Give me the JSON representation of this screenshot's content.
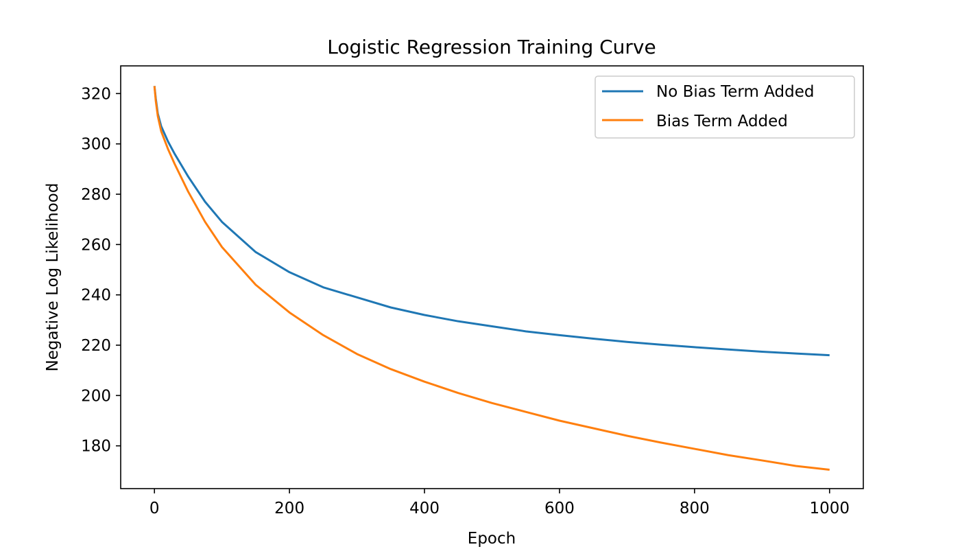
{
  "chart_data": {
    "type": "line",
    "title": "Logistic Regression Training Curve",
    "xlabel": "Epoch",
    "ylabel": "Negative Log Likelihood",
    "xlim": [
      -50,
      1050
    ],
    "ylim": [
      163,
      331
    ],
    "xticks": [
      0,
      200,
      400,
      600,
      800,
      1000
    ],
    "yticks": [
      180,
      200,
      220,
      240,
      260,
      280,
      300,
      320
    ],
    "grid": false,
    "legend_position": "top-right",
    "x": [
      0,
      2,
      5,
      10,
      20,
      30,
      50,
      75,
      100,
      150,
      200,
      250,
      300,
      350,
      400,
      450,
      500,
      550,
      600,
      650,
      700,
      750,
      800,
      850,
      900,
      950,
      1000
    ],
    "series": [
      {
        "name": "No Bias Term Added",
        "color": "#1f77b4",
        "values": [
          323,
          318,
          312,
          307,
          301,
          296,
          287,
          277,
          269,
          257,
          249,
          243,
          239,
          235,
          232,
          229.5,
          227.5,
          225.5,
          224,
          222.6,
          221.3,
          220.2,
          219.2,
          218.3,
          217.4,
          216.7,
          216
        ]
      },
      {
        "name": "Bias Term Added",
        "color": "#ff7f0e",
        "values": [
          323,
          317,
          311,
          305,
          298,
          292,
          281,
          269,
          259,
          244,
          233,
          224,
          216.5,
          210.5,
          205.5,
          201,
          197,
          193.5,
          190,
          187,
          184,
          181.3,
          178.8,
          176.3,
          174.2,
          172,
          170.5
        ]
      }
    ]
  }
}
